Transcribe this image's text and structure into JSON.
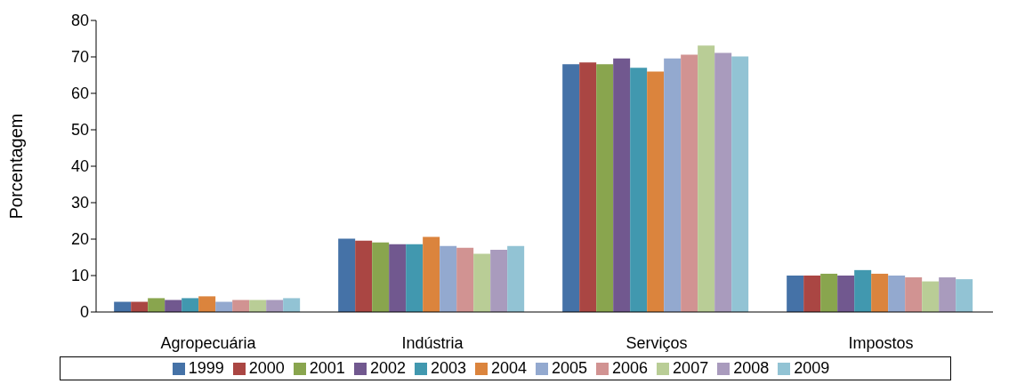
{
  "chart_data": {
    "type": "bar",
    "ylabel": "Porcentagem",
    "categories": [
      "Agropecuária",
      "Indústria",
      "Serviços",
      "Impostos"
    ],
    "ylim": [
      0,
      80
    ],
    "yticks": [
      0,
      10,
      20,
      30,
      40,
      50,
      60,
      70,
      80
    ],
    "grid": false,
    "legend": "bottom",
    "series": [
      {
        "name": "1999",
        "color": "#4572a7",
        "values": [
          2.8,
          20.1,
          68.0,
          10.0
        ]
      },
      {
        "name": "2000",
        "color": "#aa4643",
        "values": [
          2.8,
          19.6,
          68.5,
          10.0
        ]
      },
      {
        "name": "2001",
        "color": "#89a54e",
        "values": [
          3.8,
          19.1,
          68.0,
          10.5
        ]
      },
      {
        "name": "2002",
        "color": "#71588f",
        "values": [
          3.3,
          18.6,
          69.6,
          10.0
        ]
      },
      {
        "name": "2003",
        "color": "#4198af",
        "values": [
          3.8,
          18.6,
          67.0,
          11.5
        ]
      },
      {
        "name": "2004",
        "color": "#db843d",
        "values": [
          4.3,
          20.6,
          66.0,
          10.5
        ]
      },
      {
        "name": "2005",
        "color": "#93a9cf",
        "values": [
          2.8,
          18.1,
          69.6,
          10.0
        ]
      },
      {
        "name": "2006",
        "color": "#d19392",
        "values": [
          3.3,
          17.6,
          70.6,
          9.5
        ]
      },
      {
        "name": "2007",
        "color": "#b9cd96",
        "values": [
          3.3,
          16.0,
          73.1,
          8.4
        ]
      },
      {
        "name": "2008",
        "color": "#a99bbd",
        "values": [
          3.3,
          17.1,
          71.1,
          9.5
        ]
      },
      {
        "name": "2009",
        "color": "#92c3d4",
        "values": [
          3.8,
          18.1,
          70.1,
          9.0
        ]
      }
    ]
  }
}
